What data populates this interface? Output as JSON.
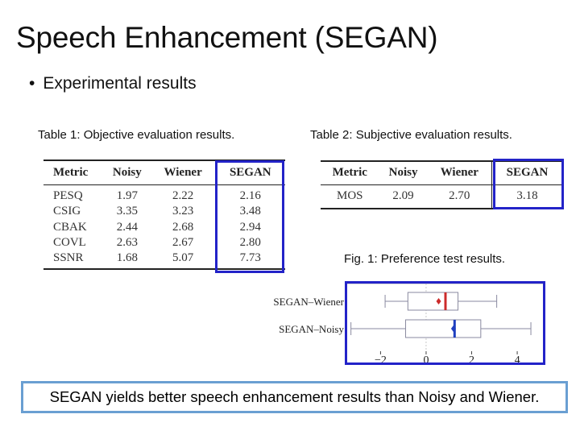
{
  "title": "Speech Enhancement (SEGAN)",
  "bullet": "Experimental results",
  "table1": {
    "caption": "Table 1: Objective evaluation results.",
    "headers": [
      "Metric",
      "Noisy",
      "Wiener",
      "SEGAN"
    ],
    "rows": [
      [
        "PESQ",
        "1.97",
        "2.22",
        "2.16"
      ],
      [
        "CSIG",
        "3.35",
        "3.23",
        "3.48"
      ],
      [
        "CBAK",
        "2.44",
        "2.68",
        "2.94"
      ],
      [
        "COVL",
        "2.63",
        "2.67",
        "2.80"
      ],
      [
        "SSNR",
        "1.68",
        "5.07",
        "7.73"
      ]
    ]
  },
  "table2": {
    "caption": "Table 2: Subjective evaluation results.",
    "headers": [
      "Metric",
      "Noisy",
      "Wiener",
      "SEGAN"
    ],
    "rows": [
      [
        "MOS",
        "2.09",
        "2.70",
        "3.18"
      ]
    ]
  },
  "figure": {
    "caption": "Fig. 1: Preference test results.",
    "chart_data": {
      "type": "box",
      "categories": [
        "SEGAN–Wiener",
        "SEGAN–Noisy"
      ],
      "xticks": [
        "−2",
        "0",
        "2",
        "4"
      ],
      "xtick_values": [
        -2,
        0,
        2,
        4
      ],
      "xlim": [
        -3.5,
        5.2
      ],
      "series": [
        {
          "whisker_low": -1.8,
          "q1": -0.8,
          "median": 0.85,
          "q3": 1.4,
          "whisker_high": 3.1,
          "mean": 0.55,
          "color": "#cc2b2b"
        },
        {
          "whisker_low": -3.3,
          "q1": -0.9,
          "median": 1.25,
          "q3": 2.4,
          "whisker_high": 4.6,
          "mean": 1.2,
          "color": "#1f3fbf"
        }
      ]
    }
  },
  "conclusion": "SEGAN yields better speech enhancement results than Noisy and Wiener.",
  "colors": {
    "highlight": "#2323c8",
    "conclusion_border": "#6a9fd2"
  }
}
